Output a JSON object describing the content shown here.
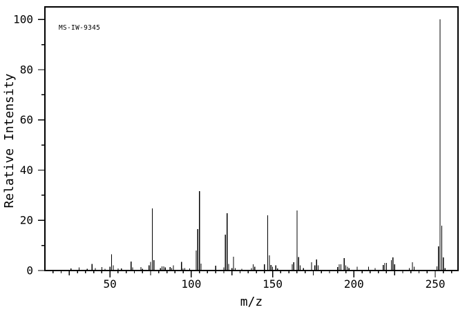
{
  "figure": {
    "annotation": "MS-IW-9345",
    "background_color": "#ffffff",
    "line_color": "#000000",
    "text_color": "#000000"
  },
  "chart_data": {
    "type": "bar",
    "title": "MS-IW-9345",
    "xlabel": "m/z",
    "ylabel": "Relative Intensity",
    "xlim": [
      10,
      264
    ],
    "ylim": [
      0,
      105
    ],
    "x_tick_labels": [
      50,
      100,
      150,
      200,
      250
    ],
    "y_tick_labels": [
      0,
      20,
      40,
      60,
      80,
      100
    ],
    "x_minor_tick_step": 5,
    "x_medium_tick_step": 25,
    "x_major_tick_step": 50,
    "y_minor_tick_step": 10,
    "y_major_tick_step": 20,
    "grid": false,
    "legend": false,
    "series_name": "relative-intensity-vs-mz",
    "peaks": [
      [
        26,
        0.8
      ],
      [
        31,
        1.2
      ],
      [
        36,
        0.7
      ],
      [
        39,
        2.6
      ],
      [
        41,
        1.0
      ],
      [
        45,
        1.4
      ],
      [
        47,
        0.7
      ],
      [
        50,
        1.5
      ],
      [
        51,
        6.4
      ],
      [
        52,
        2.0
      ],
      [
        55,
        0.8
      ],
      [
        57,
        0.8
      ],
      [
        63,
        3.6
      ],
      [
        64,
        1.3
      ],
      [
        69,
        1.4
      ],
      [
        70,
        0.7
      ],
      [
        74,
        2.0
      ],
      [
        75,
        3.4
      ],
      [
        76,
        24.7
      ],
      [
        77,
        4.1
      ],
      [
        81,
        1.0
      ],
      [
        82,
        1.6
      ],
      [
        83,
        1.7
      ],
      [
        84,
        1.2
      ],
      [
        87,
        1.4
      ],
      [
        88,
        1.0
      ],
      [
        89,
        2.0
      ],
      [
        94,
        3.5
      ],
      [
        95,
        0.8
      ],
      [
        96,
        1.0
      ],
      [
        99,
        0.8
      ],
      [
        103,
        8.0
      ],
      [
        104,
        16.5
      ],
      [
        105,
        31.6
      ],
      [
        106,
        2.7
      ],
      [
        115,
        1.9
      ],
      [
        120,
        1.2
      ],
      [
        121,
        14.3
      ],
      [
        122,
        22.8
      ],
      [
        123,
        2.6
      ],
      [
        125,
        1.0
      ],
      [
        126,
        5.5
      ],
      [
        127,
        1.0
      ],
      [
        131,
        0.7
      ],
      [
        137,
        1.0
      ],
      [
        138,
        2.5
      ],
      [
        139,
        1.5
      ],
      [
        145,
        2.5
      ],
      [
        147,
        22.0
      ],
      [
        148,
        6.0
      ],
      [
        149,
        2.2
      ],
      [
        150,
        1.5
      ],
      [
        152,
        2.0
      ],
      [
        153,
        0.8
      ],
      [
        162,
        2.5
      ],
      [
        163,
        3.3
      ],
      [
        165,
        23.9
      ],
      [
        166,
        5.4
      ],
      [
        167,
        2.0
      ],
      [
        169,
        1.0
      ],
      [
        174,
        3.3
      ],
      [
        176,
        2.0
      ],
      [
        177,
        4.4
      ],
      [
        178,
        2.0
      ],
      [
        190,
        1.4
      ],
      [
        191,
        2.5
      ],
      [
        192,
        2.5
      ],
      [
        194,
        4.9
      ],
      [
        195,
        2.0
      ],
      [
        196,
        1.5
      ],
      [
        197,
        1.0
      ],
      [
        202,
        1.5
      ],
      [
        209,
        1.5
      ],
      [
        213,
        1.0
      ],
      [
        218,
        2.2
      ],
      [
        219,
        3.0
      ],
      [
        220,
        3.0
      ],
      [
        223,
        4.1
      ],
      [
        224,
        5.2
      ],
      [
        225,
        2.5
      ],
      [
        234,
        1.0
      ],
      [
        236,
        3.3
      ],
      [
        237,
        1.5
      ],
      [
        251,
        1.6
      ],
      [
        252,
        9.6
      ],
      [
        253,
        100
      ],
      [
        254,
        17.9
      ],
      [
        255,
        5.2
      ],
      [
        256,
        0.9
      ]
    ]
  }
}
